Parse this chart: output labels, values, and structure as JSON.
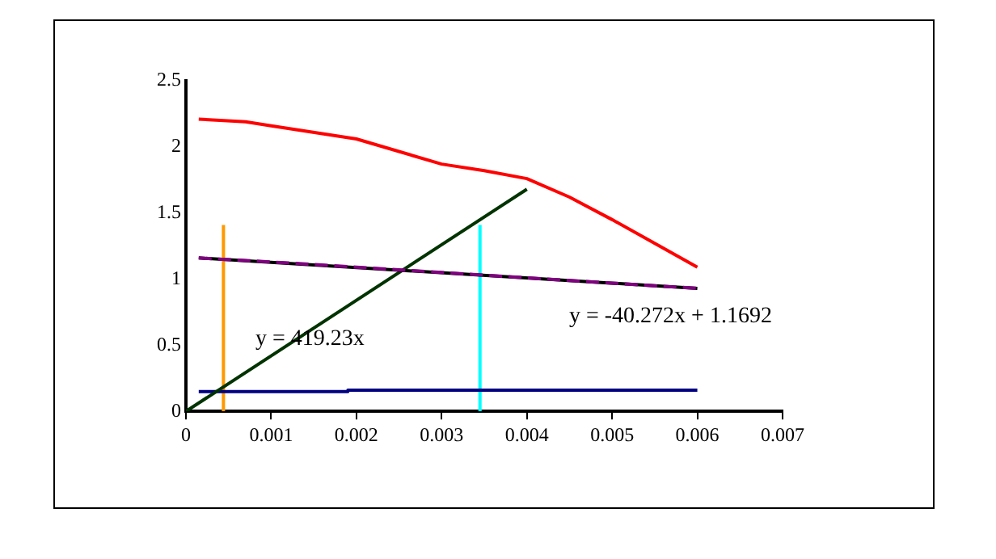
{
  "chart_data": {
    "type": "line",
    "xlim": [
      0,
      0.007
    ],
    "xticks": [
      0,
      0.001,
      0.002,
      0.003,
      0.004,
      0.005,
      0.006,
      0.007
    ],
    "ylim": [
      0,
      2.5
    ],
    "yticks": [
      0,
      0.5,
      1,
      1.5,
      2,
      2.5
    ],
    "grid": false,
    "legend": false,
    "marker": "none",
    "series": [
      {
        "color": "#ff0000",
        "x": [
          0.00015,
          0.0007,
          0.001,
          0.002,
          0.003,
          0.0035,
          0.004,
          0.0045,
          0.005,
          0.0055,
          0.006
        ],
        "values": [
          2.21,
          2.19,
          2.16,
          2.06,
          1.87,
          1.82,
          1.76,
          1.62,
          1.45,
          1.27,
          1.09
        ]
      },
      {
        "color": "#800080",
        "line_style": "dashed",
        "x": [
          0.00015,
          0.001,
          0.002,
          0.003,
          0.004,
          0.005,
          0.006
        ],
        "values": [
          1.16,
          1.13,
          1.09,
          1.05,
          1.01,
          0.97,
          0.93
        ]
      },
      {
        "color": "#000000",
        "x": [
          0.00015,
          0.006
        ],
        "values": [
          1.16,
          0.93
        ]
      },
      {
        "color": "#003300",
        "x": [
          0,
          0.004
        ],
        "values": [
          0,
          1.68
        ]
      },
      {
        "color": "#000080",
        "x": [
          0.00015,
          0.0019,
          0.0019,
          0.006
        ],
        "values": [
          0.15,
          0.15,
          0.16,
          0.16
        ]
      },
      {
        "color": "#ff9900",
        "x": [
          0.00044,
          0.00044
        ],
        "values": [
          0,
          1.41
        ]
      },
      {
        "color": "#00ffff",
        "x": [
          0.00345,
          0.00345
        ],
        "values": [
          0,
          1.41
        ]
      }
    ],
    "annotations": [
      "y = 419.23x",
      "y = -40.272x + 1.1692"
    ]
  }
}
